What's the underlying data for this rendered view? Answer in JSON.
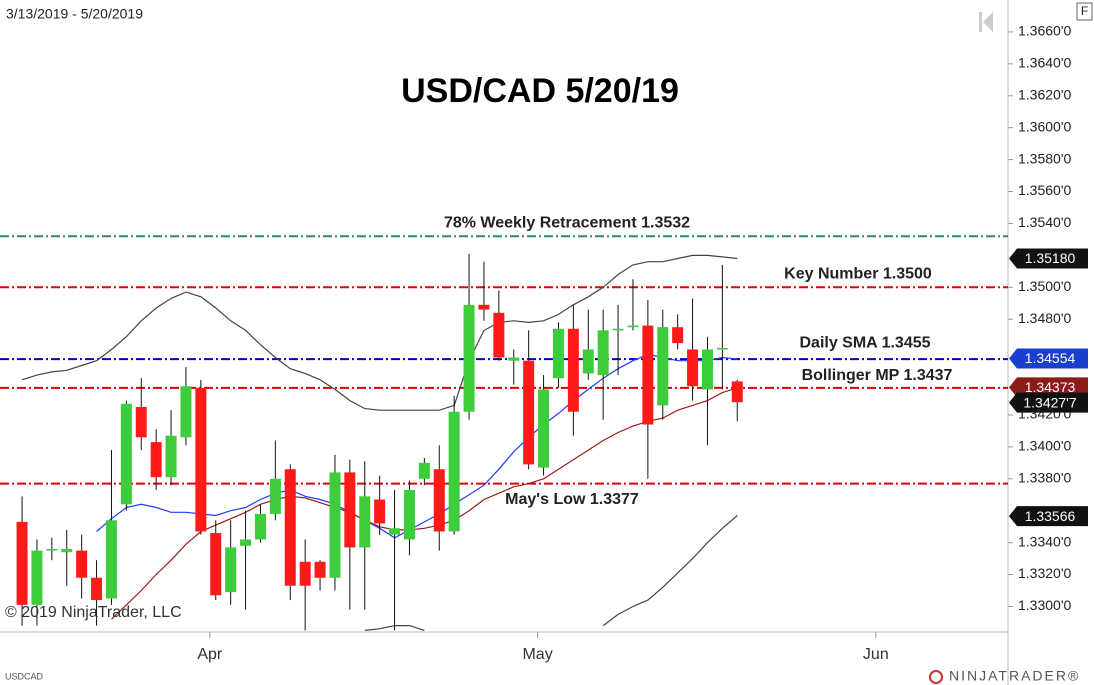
{
  "page": {
    "date_range": "3/13/2019 - 5/20/2019",
    "copyright": "© 2019 NinjaTrader, LLC",
    "symbol": "USDCAD",
    "logo": "NINJATRADER®",
    "menu": "F"
  },
  "chart_data": {
    "type": "candlestick",
    "title": "USD/CAD 5/20/19",
    "up_color": "#3ccc3c",
    "down_color": "#ff1a1a",
    "open": [
      1.3353,
      1.3301,
      1.3335,
      1.3334,
      1.3335,
      1.3318,
      1.3305,
      1.3364,
      1.3425,
      1.3403,
      1.3381,
      1.3406,
      1.3437,
      1.3346,
      1.3309,
      1.3338,
      1.3342,
      1.3358,
      1.3386,
      1.3328,
      1.3328,
      1.3318,
      1.3384,
      1.3337,
      1.3367,
      1.3345,
      1.3342,
      1.338,
      1.3386,
      1.3347,
      1.3422,
      1.3489,
      1.3484,
      1.3454,
      1.3454,
      1.3387,
      1.3443,
      1.3474,
      1.3446,
      1.3445,
      1.3473,
      1.3475,
      1.3476,
      1.3426,
      1.3475,
      1.3461,
      1.3436,
      1.3461,
      1.3441
    ],
    "high": [
      1.3369,
      1.3342,
      1.3343,
      1.3348,
      1.3345,
      1.3329,
      1.3398,
      1.3429,
      1.3443,
      1.3411,
      1.3423,
      1.345,
      1.3442,
      1.3354,
      1.3354,
      1.336,
      1.3364,
      1.3404,
      1.3389,
      1.3342,
      1.3329,
      1.3395,
      1.3392,
      1.3391,
      1.3382,
      1.3373,
      1.3379,
      1.3393,
      1.3401,
      1.3432,
      1.3521,
      1.3516,
      1.3498,
      1.3461,
      1.3473,
      1.3445,
      1.3478,
      1.3489,
      1.3486,
      1.3486,
      1.3489,
      1.3505,
      1.3492,
      1.3486,
      1.3483,
      1.3493,
      1.3469,
      1.3514,
      1.3442
    ],
    "low": [
      1.3288,
      1.3288,
      1.3329,
      1.3313,
      1.3305,
      1.3288,
      1.3301,
      1.336,
      1.3398,
      1.3373,
      1.3376,
      1.3401,
      1.3345,
      1.3304,
      1.3301,
      1.3298,
      1.334,
      1.3354,
      1.3304,
      1.3285,
      1.331,
      1.331,
      1.3298,
      1.3298,
      1.3345,
      1.3285,
      1.3332,
      1.3376,
      1.3335,
      1.3345,
      1.3417,
      1.3479,
      1.3454,
      1.3439,
      1.3386,
      1.3382,
      1.3437,
      1.3407,
      1.3442,
      1.3417,
      1.3445,
      1.3473,
      1.338,
      1.3417,
      1.3461,
      1.3429,
      1.3401,
      1.3436,
      1.3416
    ],
    "close": [
      1.3301,
      1.3335,
      1.3336,
      1.3336,
      1.3318,
      1.3304,
      1.3354,
      1.3427,
      1.3406,
      1.3381,
      1.3407,
      1.3438,
      1.3347,
      1.3307,
      1.3337,
      1.3342,
      1.3358,
      1.338,
      1.3313,
      1.3313,
      1.3318,
      1.3384,
      1.3337,
      1.3369,
      1.3352,
      1.3349,
      1.3373,
      1.339,
      1.3347,
      1.3422,
      1.3489,
      1.3486,
      1.3456,
      1.3456,
      1.3389,
      1.3436,
      1.3474,
      1.3422,
      1.3461,
      1.3473,
      1.3474,
      1.3476,
      1.3414,
      1.3475,
      1.3465,
      1.3438,
      1.3461,
      1.3462,
      1.3428
    ],
    "lines": [
      {
        "color": "#444444",
        "values": [
          1.3442,
          1.3445,
          1.3447,
          1.3448,
          1.3451,
          1.3454,
          1.3461,
          1.3469,
          1.3479,
          1.3487,
          1.3493,
          1.3497,
          1.3494,
          1.3487,
          1.3479,
          1.3473,
          1.3464,
          1.3456,
          1.3449,
          1.3446,
          1.3442,
          1.3436,
          1.3429,
          1.3424,
          1.3423,
          1.3423,
          1.3423,
          1.3423,
          1.3423,
          1.3426,
          1.3454,
          1.3473,
          1.3478,
          1.3479,
          1.3478,
          1.3479,
          1.3483,
          1.3489,
          1.3494,
          1.35,
          1.3508,
          1.3514,
          1.3516,
          1.3516,
          1.3518,
          1.352,
          1.352,
          1.3519,
          1.3518
        ]
      },
      {
        "color": "#444444",
        "values": [
          null,
          null,
          null,
          null,
          null,
          null,
          null,
          null,
          null,
          null,
          null,
          null,
          null,
          null,
          null,
          null,
          null,
          null,
          null,
          null,
          null,
          null,
          null,
          1.3285,
          1.3286,
          1.3288,
          1.3288,
          1.3285,
          null,
          null,
          null,
          null,
          null,
          null,
          null,
          null,
          null,
          null,
          null,
          1.3288,
          1.3295,
          1.33,
          1.3304,
          1.3312,
          1.3321,
          1.333,
          1.334,
          1.3349,
          1.3357
        ]
      },
      {
        "color": "#1f3fff",
        "values": [
          null,
          null,
          null,
          null,
          null,
          1.3347,
          1.3355,
          1.3362,
          1.3364,
          1.3362,
          1.3359,
          1.3359,
          1.3358,
          1.3357,
          1.336,
          1.3362,
          1.3367,
          1.3371,
          1.3373,
          1.3369,
          1.3367,
          1.3364,
          1.3359,
          1.3354,
          1.3349,
          1.3343,
          1.3348,
          1.3353,
          1.3358,
          1.3364,
          1.337,
          1.3376,
          1.3386,
          1.3397,
          1.3406,
          1.3414,
          1.3421,
          1.3429,
          1.3436,
          1.3443,
          1.3449,
          1.3454,
          1.3458,
          1.3456,
          1.3454,
          1.3454,
          1.3454,
          1.3456,
          1.3455
        ]
      },
      {
        "color": "#9b1c1c",
        "values": [
          null,
          null,
          null,
          null,
          null,
          null,
          1.3292,
          1.3301,
          1.331,
          1.332,
          1.3329,
          1.3339,
          1.3347,
          1.3351,
          1.3355,
          1.3359,
          1.3364,
          1.3367,
          1.3369,
          1.3368,
          1.3365,
          1.3362,
          1.3359,
          1.3354,
          1.335,
          1.3348,
          1.3348,
          1.3349,
          1.3351,
          1.3354,
          1.336,
          1.3367,
          1.3371,
          1.3375,
          1.3377,
          1.338,
          1.3386,
          1.3392,
          1.3398,
          1.3404,
          1.3409,
          1.3413,
          1.3416,
          1.3418,
          1.3423,
          1.3426,
          1.3429,
          1.3434,
          1.3437
        ]
      }
    ],
    "levels": [
      {
        "label": "78% Weekly Retracement 1.3532",
        "value": 1.3532,
        "color": "#2e8b57"
      },
      {
        "label": "Key Number 1.3500",
        "value": 1.35,
        "color": "#e00000"
      },
      {
        "label": "Daily SMA 1.3455",
        "value": 1.3455,
        "color": "#0000cc"
      },
      {
        "label": "Bollinger MP 1.3437",
        "value": 1.3437,
        "color": "#e00000"
      },
      {
        "label": "May's Low 1.3377",
        "value": 1.3377,
        "color": "#e00000"
      }
    ],
    "price_labels": [
      {
        "value": 1.3518,
        "label": "1.35180",
        "color": "#111111"
      },
      {
        "value": 1.34554,
        "label": "1.34554",
        "color": "#1a3fcc"
      },
      {
        "value": 1.34373,
        "label": "1.34373",
        "color": "#8b1a1a"
      },
      {
        "value": 1.34277,
        "label": "1.3427'7",
        "color": "#111111"
      },
      {
        "value": 1.33566,
        "label": "1.33566",
        "color": "#111111"
      }
    ],
    "ylim": [
      1.3284,
      1.368
    ],
    "yticks": [
      {
        "value": 1.366,
        "label": "1.3660'0"
      },
      {
        "value": 1.364,
        "label": "1.3640'0"
      },
      {
        "value": 1.362,
        "label": "1.3620'0"
      },
      {
        "value": 1.36,
        "label": "1.3600'0"
      },
      {
        "value": 1.358,
        "label": "1.3580'0"
      },
      {
        "value": 1.356,
        "label": "1.3560'0"
      },
      {
        "value": 1.354,
        "label": "1.3540'0"
      },
      {
        "value": 1.35,
        "label": "1.3500'0"
      },
      {
        "value": 1.348,
        "label": "1.3480'0"
      },
      {
        "value": 1.342,
        "label": "1.3420'0"
      },
      {
        "value": 1.34,
        "label": "1.3400'0"
      },
      {
        "value": 1.338,
        "label": "1.3380'0"
      },
      {
        "value": 1.334,
        "label": "1.3340'0"
      },
      {
        "value": 1.332,
        "label": "1.3320'0"
      },
      {
        "value": 1.33,
        "label": "1.3300'0"
      }
    ],
    "xlim": [
      -1.48,
      66.17
    ],
    "xticks": [
      {
        "value": 12.6,
        "label": "Apr"
      },
      {
        "value": 34.6,
        "label": "May"
      },
      {
        "value": 57.3,
        "label": "Jun"
      }
    ]
  }
}
